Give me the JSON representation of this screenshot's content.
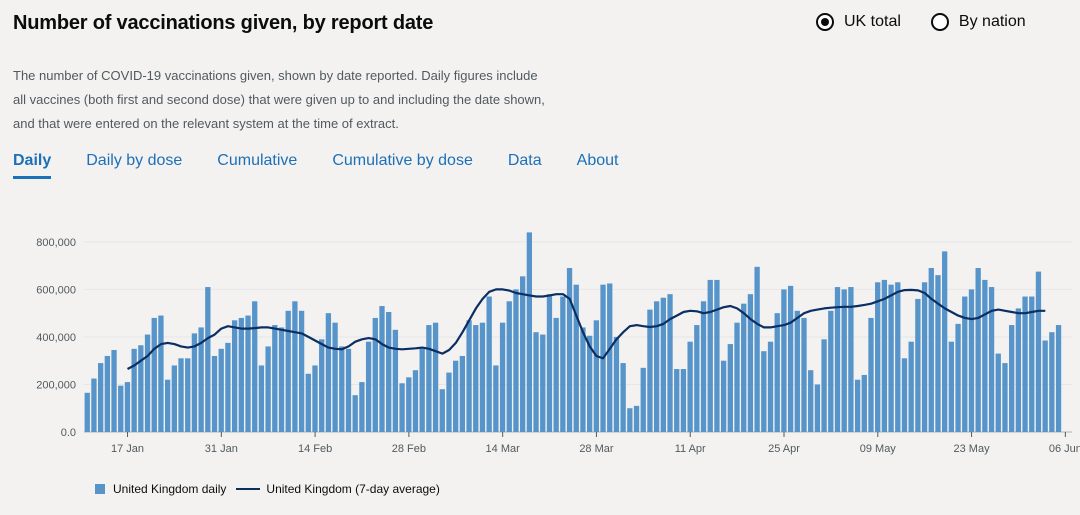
{
  "title": "Number of vaccinations given, by report date",
  "radios": [
    {
      "label": "UK total",
      "checked": true
    },
    {
      "label": "By nation",
      "checked": false
    }
  ],
  "description": "The number of COVID-19 vaccinations given, shown by date reported. Daily figures include all vaccines (both first and second dose) that were given up to and including the date shown, and that were entered on the relevant system at the time of extract.",
  "tabs": [
    {
      "label": "Daily",
      "active": true
    },
    {
      "label": "Daily by dose",
      "active": false
    },
    {
      "label": "Cumulative",
      "active": false
    },
    {
      "label": "Cumulative by dose",
      "active": false
    },
    {
      "label": "Data",
      "active": false
    },
    {
      "label": "About",
      "active": false
    }
  ],
  "legend": {
    "daily": "United Kingdom daily",
    "average": "United Kingdom (7-day average)"
  },
  "colors": {
    "bar": "#5694ca",
    "line": "#0b2e63",
    "grid": "#e6e6e6",
    "link": "#1d70b8"
  },
  "chart_data": {
    "type": "bar",
    "title": "Number of vaccinations given, by report date",
    "x_start": "11 Jan",
    "x_tick_labels": [
      "17 Jan",
      "31 Jan",
      "14 Feb",
      "28 Feb",
      "14 Mar",
      "28 Mar",
      "11 Apr",
      "25 Apr",
      "09 May",
      "23 May",
      "06 Jun"
    ],
    "x_tick_day_index": [
      6,
      20,
      34,
      48,
      62,
      76,
      90,
      104,
      118,
      132,
      146
    ],
    "y_ticks": [
      0,
      200000,
      400000,
      600000,
      800000
    ],
    "y_tick_labels": [
      "0.0",
      "200,000",
      "400,000",
      "600,000",
      "800,000"
    ],
    "ylim": [
      0,
      850000
    ],
    "series": [
      {
        "name": "United Kingdom daily",
        "type": "bar",
        "values": [
          165000,
          225000,
          290000,
          320000,
          345000,
          195000,
          210000,
          350000,
          365000,
          410000,
          480000,
          490000,
          220000,
          280000,
          310000,
          310000,
          415000,
          440000,
          610000,
          320000,
          350000,
          375000,
          470000,
          480000,
          490000,
          550000,
          280000,
          360000,
          450000,
          440000,
          510000,
          550000,
          510000,
          245000,
          280000,
          390000,
          500000,
          460000,
          360000,
          350000,
          155000,
          210000,
          380000,
          480000,
          530000,
          505000,
          430000,
          205000,
          230000,
          260000,
          350000,
          450000,
          460000,
          180000,
          250000,
          300000,
          320000,
          470000,
          450000,
          460000,
          570000,
          280000,
          460000,
          550000,
          600000,
          655000,
          840000,
          420000,
          410000,
          580000,
          480000,
          570000,
          690000,
          620000,
          440000,
          405000,
          470000,
          620000,
          625000,
          400000,
          290000,
          100000,
          110000,
          270000,
          515000,
          550000,
          565000,
          580000,
          265000,
          265000,
          380000,
          450000,
          550000,
          640000,
          640000,
          300000,
          370000,
          460000,
          540000,
          580000,
          695000,
          340000,
          380000,
          500000,
          600000,
          615000,
          510000,
          480000,
          260000,
          200000,
          390000,
          510000,
          610000,
          600000,
          610000,
          220000,
          240000,
          480000,
          630000,
          640000,
          620000,
          630000,
          310000,
          380000,
          560000,
          630000,
          690000,
          660000,
          760000,
          380000,
          455000,
          570000,
          600000,
          690000,
          640000,
          610000,
          330000,
          290000,
          450000,
          520000,
          570000,
          570000,
          675000,
          385000,
          420000,
          450000
        ]
      },
      {
        "name": "United Kingdom (7-day average)",
        "type": "line",
        "start_index": 6,
        "end_index": 143,
        "values": [
          265000,
          280000,
          300000,
          320000,
          350000,
          370000,
          375000,
          370000,
          360000,
          355000,
          360000,
          375000,
          395000,
          410000,
          435000,
          445000,
          440000,
          435000,
          435000,
          437000,
          440000,
          440000,
          435000,
          430000,
          425000,
          420000,
          415000,
          400000,
          385000,
          370000,
          355000,
          350000,
          348000,
          360000,
          380000,
          390000,
          395000,
          390000,
          370000,
          355000,
          350000,
          348000,
          350000,
          352000,
          355000,
          350000,
          340000,
          330000,
          345000,
          375000,
          420000,
          470000,
          520000,
          560000,
          590000,
          600000,
          600000,
          595000,
          585000,
          580000,
          575000,
          570000,
          570000,
          575000,
          580000,
          580000,
          560000,
          490000,
          420000,
          360000,
          320000,
          310000,
          350000,
          390000,
          420000,
          445000,
          450000,
          445000,
          442000,
          445000,
          455000,
          475000,
          490000,
          505000,
          510000,
          508000,
          500000,
          505000,
          515000,
          525000,
          530000,
          520000,
          500000,
          475000,
          455000,
          440000,
          440000,
          445000,
          450000,
          460000,
          480000,
          500000,
          510000,
          515000,
          520000,
          523000,
          525000,
          527000,
          527000,
          530000,
          535000,
          540000,
          550000,
          560000,
          575000,
          590000,
          597000,
          598000,
          596000,
          585000,
          560000,
          540000,
          520000,
          505000,
          490000,
          480000,
          475000,
          480000,
          495000,
          510000,
          515000,
          510000,
          505000,
          500000,
          500000,
          505000,
          510000,
          510000
        ]
      }
    ]
  }
}
